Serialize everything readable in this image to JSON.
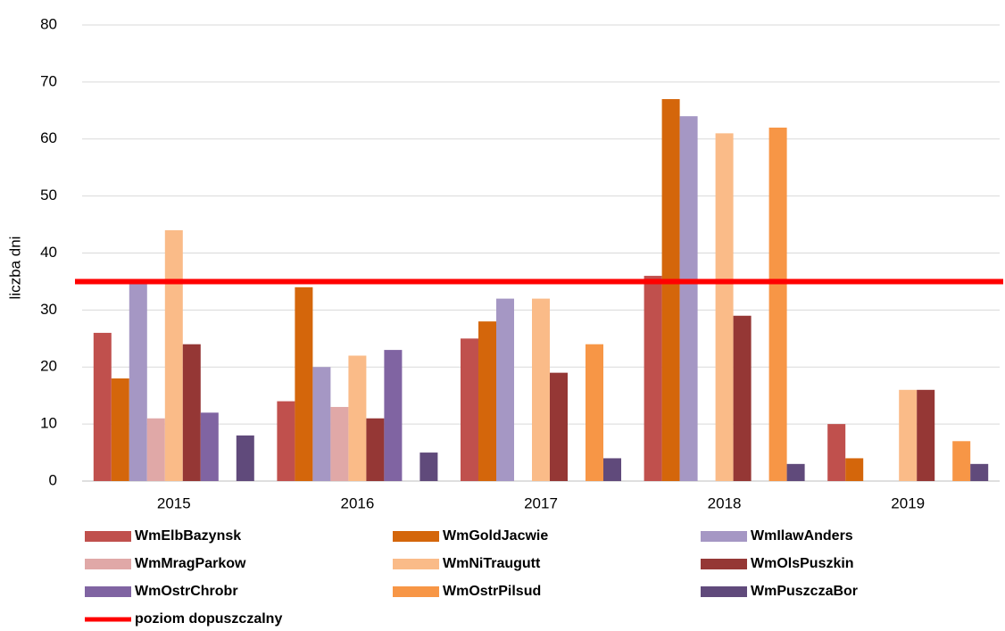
{
  "chart_data": {
    "type": "bar",
    "y_label": "liczba dni",
    "categories": [
      "2015",
      "2016",
      "2017",
      "2018",
      "2019"
    ],
    "ylim": [
      0,
      80
    ],
    "yticks": [
      0,
      10,
      20,
      30,
      40,
      50,
      60,
      70,
      80
    ],
    "grid": true,
    "legend": "bottom",
    "series": [
      {
        "name": "WmElbBazynsk",
        "color": "#c0504d",
        "values": [
          26,
          14,
          25,
          36,
          10
        ]
      },
      {
        "name": "WmGoldJacwie",
        "color": "#d4660b",
        "values": [
          18,
          34,
          28,
          67,
          4
        ]
      },
      {
        "name": "WmIlawAnders",
        "color": "#a597c4",
        "values": [
          35,
          20,
          32,
          64,
          null
        ]
      },
      {
        "name": "WmMragParkow",
        "color": "#e0a8a7",
        "values": [
          11,
          13,
          null,
          null,
          null
        ]
      },
      {
        "name": "WmNiTraugutt",
        "color": "#fabb88",
        "values": [
          44,
          22,
          32,
          61,
          16
        ]
      },
      {
        "name": "WmOlsPuszkin",
        "color": "#953735",
        "values": [
          24,
          11,
          19,
          29,
          16
        ]
      },
      {
        "name": "WmOstrChrobr",
        "color": "#8064a2",
        "values": [
          12,
          23,
          null,
          null,
          null
        ]
      },
      {
        "name": "WmOstrPilsud",
        "color": "#f79646",
        "values": [
          null,
          null,
          24,
          62,
          7
        ]
      },
      {
        "name": "WmPuszczaBor",
        "color": "#604a7b",
        "values": [
          8,
          5,
          4,
          3,
          3
        ]
      }
    ],
    "reference_line": {
      "name": "poziom dopuszczalny",
      "value": 35,
      "color": "#ff0000"
    }
  }
}
